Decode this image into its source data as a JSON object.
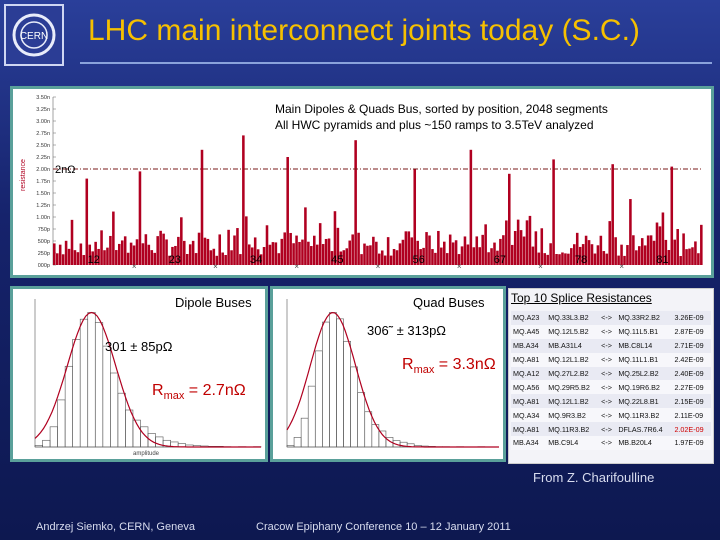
{
  "slide": {
    "title": "LHC main interconnect joints today (S.C.)",
    "logo_text": "CERN",
    "source": "From Z. Charifoulline",
    "author": "Andrzej Siemko, CERN, Geneva",
    "conference": "Cracow Epiphany Conference   10 – 12 January 2011",
    "colors": {
      "title": "#f6c000",
      "background": "#1a2a7a",
      "bars": "#b00020",
      "threshold": "#7a1a1a",
      "fit": "#b00020"
    }
  },
  "chart_data": [
    {
      "type": "bar",
      "title": "Main Dipoles & Quads Bus, sorted by position, 2048 segments",
      "subtitle": "All HWC pyramids and plus ~150 ramps to 3.5TeV analyzed",
      "ylabel": "resistance",
      "yticks": [
        "3.50n",
        "3.25n",
        "3.00n",
        "2.75n",
        "2.50n",
        "2.25n",
        "2.00n",
        "1.75n",
        "1.50n",
        "1.25n",
        "1.00n",
        "750p",
        "500p",
        "250p",
        "000p"
      ],
      "ylim": [
        0,
        3.5
      ],
      "n_segments": 2048,
      "threshold": {
        "value": 2.0,
        "label": "2nΩ"
      },
      "sector_labels": [
        "12",
        "23",
        "34",
        "45",
        "56",
        "67",
        "78",
        "81"
      ],
      "peaks": [
        {
          "position": 0.292,
          "value": 2.7
        },
        {
          "position": 0.462,
          "value": 2.6
        },
        {
          "position": 0.226,
          "value": 2.4
        },
        {
          "position": 0.64,
          "value": 2.4
        },
        {
          "position": 0.36,
          "value": 2.25
        },
        {
          "position": 0.77,
          "value": 2.2
        },
        {
          "position": 0.86,
          "value": 2.1
        },
        {
          "position": 0.95,
          "value": 2.05
        },
        {
          "position": 0.555,
          "value": 2.0
        },
        {
          "position": 0.13,
          "value": 1.95
        },
        {
          "position": 0.05,
          "value": 1.8
        },
        {
          "position": 0.7,
          "value": 1.9
        }
      ]
    },
    {
      "type": "bar",
      "title": "Dipole Buses",
      "stat_text": "301 ± 85pΩ",
      "rmax_prefix": "R",
      "rmax_sub": "max",
      "rmax_value": " = 2.7nΩ",
      "xlabel": "amplitude",
      "values": [
        0.5,
        2,
        6,
        14,
        24,
        32,
        38,
        40,
        37,
        30,
        22,
        16,
        11,
        8,
        6,
        4,
        3,
        2,
        1.5,
        1,
        0.6,
        0.4,
        0.3,
        0.2,
        0.2,
        0.1,
        0,
        0.1,
        0,
        0.1
      ],
      "fit": "gaussian"
    },
    {
      "type": "bar",
      "title": "Quad Buses",
      "stat_text": "306˜ ± 313pΩ",
      "rmax_prefix": "R",
      "rmax_sub": "max",
      "rmax_value": " = 3.3nΩ",
      "values": [
        0.5,
        3,
        9,
        19,
        30,
        39,
        42,
        40,
        33,
        25,
        17,
        11,
        7,
        5,
        3,
        2,
        1.5,
        1,
        0.5,
        0.3,
        0.2,
        0.1,
        0.1,
        0,
        0.1,
        0,
        0,
        0.1,
        0,
        0
      ],
      "fit": "gaussian"
    }
  ],
  "splices": {
    "title": "Top 10 Splice Resistances",
    "rows": [
      [
        "MQ.A23",
        "MQ.33L3.B2",
        "<->",
        "MQ.33R2.B2",
        "3.26E-09"
      ],
      [
        "MQ.A45",
        "MQ.12L5.B2",
        "<->",
        "MQ.11L5.B1",
        "2.87E-09"
      ],
      [
        "MB.A34",
        "MB.A31L4",
        "<->",
        "MB.C8L14",
        "2.71E-09"
      ],
      [
        "MQ.A81",
        "MQ.12L1.B2",
        "<->",
        "MQ.11L1.B1",
        "2.42E-09"
      ],
      [
        "MQ.A12",
        "MQ.27L2.B2",
        "<->",
        "MQ.25L2.B2",
        "2.40E-09"
      ],
      [
        "MQ.A56",
        "MQ.29R5.B2",
        "<->",
        "MQ.19R6.B2",
        "2.27E-09"
      ],
      [
        "MQ.A81",
        "MQ.12L1.B2",
        "<->",
        "MQ.22L8.B1",
        "2.15E-09"
      ],
      [
        "MQ.A34",
        "MQ.9R3.B2",
        "<->",
        "MQ.11R3.B2",
        "2.11E-09"
      ],
      [
        "MQ.A81",
        "MQ.11R3.B2",
        "<->",
        "DFLAS.7R6.4",
        "2.02E-09"
      ],
      [
        "MB.A34",
        "MB.C9L4",
        "<->",
        "MB.B20L4",
        "1.97E-09"
      ]
    ],
    "highlight_row": 8,
    "highlight_color": "#d00000"
  }
}
